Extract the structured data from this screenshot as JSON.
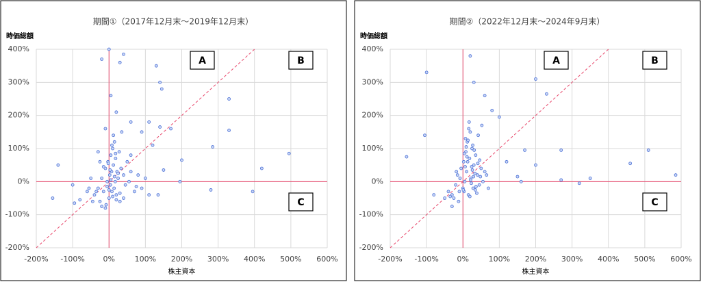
{
  "chart_data": [
    {
      "type": "scatter",
      "title": "期間①（2017年12月末～2019年12月末）",
      "x_label": "株主資本",
      "y_label": "時価総額",
      "color": "#4a6fd6",
      "grid": true,
      "annotations": [
        "A",
        "B",
        "C"
      ],
      "xlim": [
        -200,
        600
      ],
      "ylim": [
        -200,
        400
      ],
      "xticks": [
        {
          "value": -200,
          "label": "-200%"
        },
        {
          "value": -100,
          "label": "-100%"
        },
        {
          "value": 0,
          "label": "0%"
        },
        {
          "value": 100,
          "label": "100%"
        },
        {
          "value": 200,
          "label": "200%"
        },
        {
          "value": 300,
          "label": "300%"
        },
        {
          "value": 400,
          "label": "400%"
        },
        {
          "value": 500,
          "label": "500%"
        },
        {
          "value": 600,
          "label": "600%"
        }
      ],
      "yticks": [
        {
          "value": -200,
          "label": "-200%"
        },
        {
          "value": -100,
          "label": "-100%"
        },
        {
          "value": 0,
          "label": "0%"
        },
        {
          "value": 100,
          "label": "100%"
        },
        {
          "value": 200,
          "label": "200%"
        },
        {
          "value": 300,
          "label": "300%"
        },
        {
          "value": 400,
          "label": "400%"
        }
      ],
      "x": [
        -40,
        -30,
        -25,
        -20,
        -15,
        -10,
        -8,
        -5,
        -3,
        0,
        2,
        4,
        5,
        7,
        8,
        10,
        12,
        14,
        15,
        17,
        18,
        20,
        22,
        25,
        28,
        30,
        33,
        35,
        40,
        45,
        50,
        55,
        60,
        70,
        -35,
        -45,
        -55,
        -20,
        -10,
        0,
        10,
        20,
        30,
        5,
        15,
        25,
        -5,
        -15,
        40,
        60,
        80,
        90,
        100,
        110,
        -25,
        12,
        8,
        3,
        -2,
        18,
        -155,
        -140,
        -100,
        0,
        -20,
        40,
        30,
        130,
        140,
        145,
        330,
        330,
        285,
        495,
        420,
        395,
        200,
        195,
        280,
        170,
        140,
        150,
        135,
        -80,
        -95,
        -60,
        -50,
        -30,
        -10,
        5,
        20,
        60,
        90,
        110,
        120,
        75
      ],
      "values": [
        -40,
        -20,
        -60,
        10,
        -30,
        40,
        -70,
        0,
        60,
        -50,
        20,
        -10,
        80,
        30,
        -30,
        100,
        50,
        -20,
        120,
        0,
        70,
        -40,
        30,
        10,
        90,
        -60,
        40,
        150,
        20,
        -10,
        60,
        0,
        30,
        -30,
        -30,
        -60,
        -20,
        -75,
        -80,
        -25,
        -45,
        -55,
        -35,
        5,
        15,
        25,
        -15,
        45,
        -50,
        80,
        20,
        -20,
        10,
        -40,
        60,
        140,
        110,
        35,
        55,
        85,
        -50,
        50,
        -10,
        400,
        370,
        385,
        360,
        350,
        300,
        280,
        250,
        155,
        105,
        85,
        40,
        -30,
        65,
        0,
        -25,
        160,
        165,
        35,
        -40,
        -55,
        -65,
        -30,
        10,
        90,
        160,
        260,
        210,
        180,
        150,
        180,
        110,
        -15
      ]
    },
    {
      "type": "scatter",
      "title": "期間②（2022年12月末～2024年9月末）",
      "x_label": "株主資本",
      "y_label": "時価総額",
      "color": "#4a6fd6",
      "grid": true,
      "annotations": [
        "A",
        "B",
        "C"
      ],
      "xlim": [
        -200,
        600
      ],
      "ylim": [
        -200,
        400
      ],
      "xticks": [
        {
          "value": -200,
          "label": "-200%"
        },
        {
          "value": -100,
          "label": "-100%"
        },
        {
          "value": 0,
          "label": "0%"
        },
        {
          "value": 100,
          "label": "100%"
        },
        {
          "value": 200,
          "label": "200%"
        },
        {
          "value": 300,
          "label": "300%"
        },
        {
          "value": 400,
          "label": "400%"
        },
        {
          "value": 500,
          "label": "500%"
        },
        {
          "value": 600,
          "label": "600%"
        }
      ],
      "yticks": [
        {
          "value": -200,
          "label": "-200%"
        },
        {
          "value": -100,
          "label": "-100%"
        },
        {
          "value": 0,
          "label": "0%"
        },
        {
          "value": 100,
          "label": "100%"
        },
        {
          "value": 200,
          "label": "200%"
        },
        {
          "value": 300,
          "label": "300%"
        },
        {
          "value": 400,
          "label": "400%"
        }
      ],
      "x": [
        -30,
        -20,
        -15,
        -10,
        -5,
        0,
        2,
        5,
        8,
        10,
        12,
        15,
        18,
        20,
        22,
        25,
        28,
        30,
        35,
        40,
        45,
        50,
        55,
        60,
        -25,
        -8,
        3,
        7,
        13,
        17,
        23,
        27,
        33,
        38,
        42,
        48,
        -35,
        -12,
        1,
        6,
        11,
        16,
        21,
        26,
        31,
        36,
        41,
        46,
        65,
        70,
        -40,
        -18,
        4,
        9,
        14,
        19,
        24,
        29,
        34,
        52,
        -155,
        -100,
        -105,
        20,
        200,
        230,
        270,
        510,
        585,
        460,
        350,
        320,
        270,
        200,
        170,
        150,
        100,
        80,
        60,
        30,
        -50,
        -30,
        -80,
        120,
        160
      ],
      "values": [
        -40,
        -10,
        20,
        -30,
        40,
        -20,
        60,
        0,
        90,
        30,
        120,
        -40,
        70,
        150,
        10,
        100,
        -20,
        50,
        80,
        20,
        -10,
        40,
        0,
        30,
        -50,
        10,
        -30,
        130,
        60,
        180,
        -5,
        110,
        25,
        -35,
        140,
        15,
        -45,
        -60,
        -25,
        45,
        75,
        160,
        5,
        35,
        95,
        -15,
        55,
        65,
        20,
        -20,
        -30,
        30,
        85,
        105,
        125,
        -45,
        45,
        15,
        -25,
        170,
        75,
        330,
        140,
        380,
        310,
        265,
        95,
        95,
        20,
        55,
        10,
        -5,
        5,
        50,
        95,
        15,
        195,
        215,
        260,
        300,
        -50,
        -75,
        -40,
        60,
        0
      ]
    }
  ]
}
